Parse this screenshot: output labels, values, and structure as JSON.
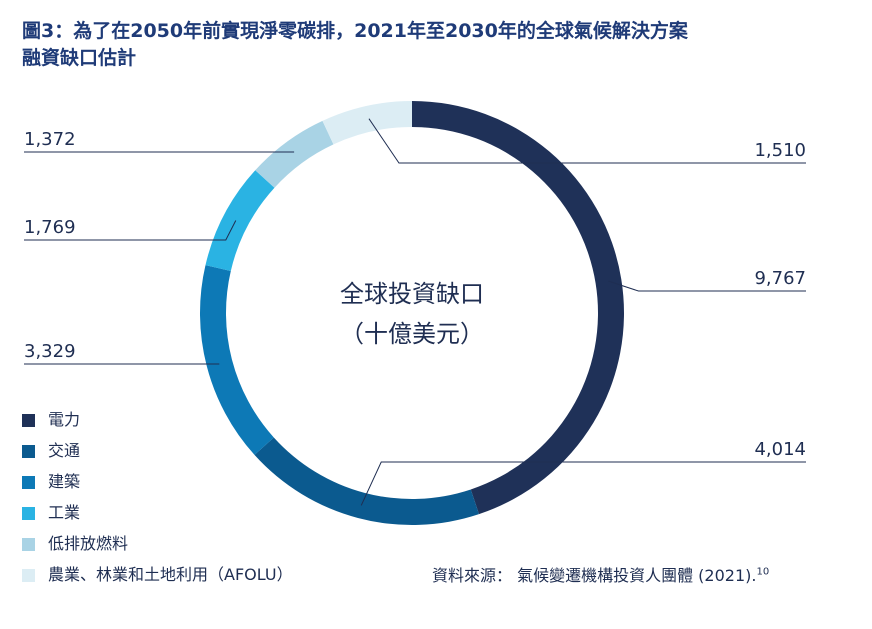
{
  "title": {
    "line1": "圖3：為了在2050年前實現淨零碳排，2021年至2030年的全球氣候解決方案",
    "line2": "融資缺口估計"
  },
  "chart_data": {
    "type": "pie",
    "variant": "donut",
    "center_label_line1": "全球投資缺口",
    "center_label_line2": "（十億美元）",
    "slices": [
      {
        "name": "電力",
        "value": 9767,
        "label": "9,767",
        "color": "#1f3158"
      },
      {
        "name": "交通",
        "value": 4014,
        "label": "4,014",
        "color": "#0b5a8f"
      },
      {
        "name": "建築",
        "value": 3329,
        "label": "3,329",
        "color": "#0d79b6"
      },
      {
        "name": "工業",
        "value": 1769,
        "label": "1,769",
        "color": "#2ab3e3"
      },
      {
        "name": "低排放燃料",
        "value": 1372,
        "label": "1,372",
        "color": "#a9d3e5"
      },
      {
        "name": "農業、林業和土地利用（AFOLU）",
        "value": 1510,
        "label": "1,510",
        "color": "#dcedf4"
      }
    ]
  },
  "legend": {
    "items": [
      {
        "label": "電力",
        "color": "#1f3158"
      },
      {
        "label": "交通",
        "color": "#0b5a8f"
      },
      {
        "label": "建築",
        "color": "#0d79b6"
      },
      {
        "label": "工業",
        "color": "#2ab3e3"
      },
      {
        "label": "低排放燃料",
        "color": "#a9d3e5"
      },
      {
        "label": "農業、林業和土地利用（AFOLU）",
        "color": "#dcedf4"
      }
    ]
  },
  "source": {
    "text": "資料來源： 氣候變遷機構投資人團體 (2021).",
    "footnote": "10"
  }
}
